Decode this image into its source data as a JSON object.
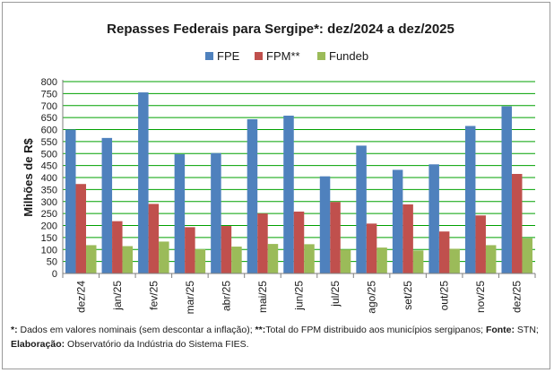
{
  "chart_data": {
    "type": "bar",
    "title": "Repasses Federais para Sergipe*: dez/2024 a dez/2025",
    "ylabel": "Milhões de R$",
    "xlabel": "",
    "categories": [
      "dez/24",
      "jan/25",
      "fev/25",
      "mar/25",
      "abr/25",
      "mai/25",
      "jun/25",
      "jul/25",
      "ago/25",
      "set/25",
      "out/25",
      "nov/25",
      "dez/25"
    ],
    "series": [
      {
        "name": "FPE",
        "color": "#4f81bd",
        "values": [
          600,
          565,
          755,
          497,
          502,
          643,
          658,
          405,
          533,
          432,
          455,
          615,
          697
        ]
      },
      {
        "name": "FPM**",
        "color": "#c0504d",
        "values": [
          373,
          218,
          290,
          193,
          198,
          250,
          258,
          298,
          208,
          288,
          175,
          242,
          415
        ]
      },
      {
        "name": "Fundeb",
        "color": "#9bbb59",
        "values": [
          118,
          114,
          133,
          101,
          112,
          123,
          122,
          100,
          108,
          96,
          103,
          118,
          147
        ]
      }
    ],
    "ylim": [
      0,
      800
    ],
    "yticks": [
      0,
      50,
      100,
      150,
      200,
      250,
      300,
      350,
      400,
      450,
      500,
      550,
      600,
      650,
      700,
      750,
      800
    ],
    "grid": true,
    "gridline_color": "#00a000",
    "legend_position": "top"
  },
  "notes": {
    "line1_mark1": "*:",
    "line1_text1": " Dados em valores nominais (sem descontar a inflação); ",
    "line1_mark2": "**:",
    "line1_text2": "Total do FPM distribuido aos municípios sergipanos; ",
    "line1_mark3": "Fonte:",
    "line1_text3": " STN;",
    "line2_mark": "Elaboração:",
    "line2_text": " Observatório da Indústria do Sistema FIES."
  }
}
